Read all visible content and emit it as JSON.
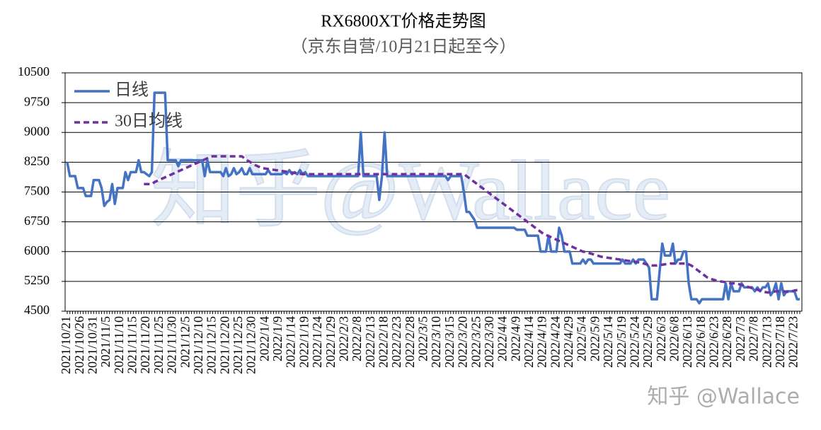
{
  "chart_data": {
    "type": "line",
    "title": "RX6800XT价格走势图",
    "subtitle": "（京东自营/10月21日起至今）",
    "watermark": "知乎@Wallace",
    "credit": "知乎 @Wallace",
    "ylim": [
      4500,
      10500
    ],
    "yticks": [
      4500,
      5250,
      6000,
      6750,
      7500,
      8250,
      9000,
      9750,
      10500
    ],
    "grid": true,
    "legend": "top-left",
    "categories": [
      "2021/10/21",
      null,
      null,
      null,
      null,
      "2021/10/26",
      null,
      null,
      null,
      null,
      "2021/10/31",
      null,
      null,
      null,
      null,
      "2021/11/5",
      null,
      null,
      null,
      null,
      "2021/11/10",
      null,
      null,
      null,
      null,
      "2021/11/15",
      null,
      null,
      null,
      null,
      "2021/11/20",
      null,
      null,
      null,
      null,
      "2021/11/25",
      null,
      null,
      null,
      null,
      "2021/11/30",
      null,
      null,
      null,
      null,
      "2021/12/5",
      null,
      null,
      null,
      null,
      "2021/12/10",
      null,
      null,
      null,
      null,
      "2021/12/15",
      null,
      null,
      null,
      null,
      "2021/12/20",
      null,
      null,
      null,
      null,
      "2021/12/25",
      null,
      null,
      null,
      null,
      "2021/12/30",
      null,
      null,
      null,
      null,
      "2022/1/4",
      null,
      null,
      null,
      null,
      "2022/1/9",
      null,
      null,
      null,
      null,
      "2022/1/14",
      null,
      null,
      null,
      null,
      "2022/1/19",
      null,
      null,
      null,
      null,
      "2022/1/24",
      null,
      null,
      null,
      null,
      "2022/1/29",
      null,
      null,
      null,
      null,
      "2022/2/3",
      null,
      null,
      null,
      null,
      "2022/2/8",
      null,
      null,
      null,
      null,
      "2022/2/13",
      null,
      null,
      null,
      null,
      "2022/2/18",
      null,
      null,
      null,
      null,
      "2022/2/23",
      null,
      null,
      null,
      null,
      "2022/2/28",
      null,
      null,
      null,
      null,
      "2022/3/5",
      null,
      null,
      null,
      null,
      "2022/3/10",
      null,
      null,
      null,
      null,
      "2022/3/15",
      null,
      null,
      null,
      null,
      "2022/3/20",
      null,
      null,
      null,
      null,
      "2022/3/25",
      null,
      null,
      null,
      null,
      "2022/3/30",
      null,
      null,
      null,
      null,
      "2022/4/4",
      null,
      null,
      null,
      null,
      "2022/4/9",
      null,
      null,
      null,
      null,
      "2022/4/14",
      null,
      null,
      null,
      null,
      "2022/4/19",
      null,
      null,
      null,
      null,
      "2022/4/24",
      null,
      null,
      null,
      null,
      "2022/4/29",
      null,
      null,
      null,
      null,
      "2022/5/4",
      null,
      null,
      null,
      null,
      "2022/5/9",
      null,
      null,
      null,
      null,
      "2022/5/14",
      null,
      null,
      null,
      null,
      "2022/5/19",
      null,
      null,
      null,
      null,
      "2022/5/24",
      null,
      null,
      null,
      null,
      "2022/5/29",
      null,
      null,
      null,
      null,
      "2022/6/3",
      null,
      null,
      null,
      null,
      "2022/6/8",
      null,
      null,
      null,
      null,
      "2022/6/13",
      null,
      null,
      null,
      null,
      "2022/6/18",
      null,
      null,
      null,
      null,
      "2022/6/23",
      null,
      null,
      null,
      null,
      "2022/6/28",
      null,
      null,
      null,
      null,
      "2022/7/3",
      null,
      null,
      null,
      null,
      "2022/7/8",
      null,
      null,
      null,
      null,
      "2022/7/13",
      null,
      null,
      null,
      null,
      "2022/7/18",
      null,
      null,
      null,
      null,
      "2022/7/23",
      null,
      null
    ],
    "series": [
      {
        "name": "日线",
        "color": "#4472c4",
        "dash": false,
        "values": [
          8250,
          7900,
          7900,
          7900,
          7600,
          7600,
          7600,
          7400,
          7400,
          7400,
          7800,
          7800,
          7800,
          7600,
          7150,
          7250,
          7300,
          7700,
          7200,
          7600,
          7600,
          7600,
          8000,
          7800,
          8000,
          8000,
          8000,
          8300,
          8000,
          8000,
          7950,
          7900,
          8000,
          10000,
          10000,
          10000,
          10000,
          10000,
          8300,
          8300,
          8300,
          8300,
          8150,
          8300,
          8300,
          8300,
          8300,
          8300,
          8300,
          8300,
          8300,
          8300,
          7900,
          8300,
          8000,
          8000,
          8000,
          8000,
          8000,
          7900,
          8100,
          7900,
          7950,
          8100,
          7950,
          8000,
          8100,
          7950,
          7950,
          8100,
          7950,
          7950,
          7950,
          7950,
          7950,
          7950,
          8050,
          7950,
          7950,
          7950,
          7950,
          7950,
          8000,
          7950,
          8050,
          7950,
          8000,
          7950,
          8050,
          7950,
          8000,
          7900,
          7900,
          7900,
          7900,
          7900,
          7900,
          7900,
          7900,
          7900,
          7900,
          7900,
          7900,
          7900,
          7900,
          7900,
          7900,
          7900,
          7900,
          7900,
          7900,
          9000,
          7900,
          7900,
          7900,
          7900,
          7900,
          7900,
          7300,
          7900,
          9000,
          7900,
          7900,
          7900,
          7900,
          7900,
          7900,
          7900,
          7900,
          7900,
          7900,
          7900,
          7900,
          7900,
          7900,
          7900,
          7900,
          7900,
          7900,
          7900,
          7900,
          7900,
          7900,
          7900,
          7800,
          7900,
          7900,
          7900,
          7900,
          7900,
          7500,
          7000,
          7000,
          6900,
          6800,
          6600,
          6600,
          6600,
          6600,
          6600,
          6600,
          6600,
          6600,
          6600,
          6600,
          6600,
          6600,
          6600,
          6600,
          6600,
          6550,
          6550,
          6550,
          6550,
          6400,
          6400,
          6400,
          6400,
          6400,
          6000,
          6000,
          6000,
          6400,
          6000,
          6000,
          6000,
          6600,
          6400,
          6000,
          6000,
          6000,
          5700,
          5700,
          5700,
          5700,
          5800,
          5700,
          5800,
          5800,
          5700,
          5700,
          5700,
          5700,
          5700,
          5700,
          5700,
          5700,
          5700,
          5700,
          5700,
          5800,
          5700,
          5700,
          5700,
          5800,
          5700,
          5800,
          5800,
          5800,
          5700,
          5600,
          4800,
          4800,
          4800,
          5500,
          6200,
          5900,
          5900,
          5900,
          6200,
          5700,
          5800,
          5800,
          6000,
          6000,
          5200,
          4800,
          4800,
          4800,
          4700,
          4800,
          4800,
          4800,
          4800,
          4800,
          4800,
          4800,
          4800,
          4800,
          5200,
          4800,
          5200,
          5000,
          5000,
          5000,
          5200,
          5100,
          5100,
          5100,
          5100,
          5000,
          5100,
          5000,
          5100,
          5100,
          5200,
          4900,
          5000,
          5200,
          4800,
          5200,
          4900,
          5000,
          5000,
          5000,
          5000,
          4800,
          4800
        ]
      },
      {
        "name": "30日均线",
        "color": "#7030a0",
        "dash": true,
        "values": [
          null,
          null,
          null,
          null,
          null,
          null,
          null,
          null,
          null,
          null,
          null,
          null,
          null,
          null,
          null,
          null,
          null,
          null,
          null,
          null,
          null,
          null,
          null,
          null,
          null,
          null,
          null,
          null,
          null,
          7700,
          7700,
          7700,
          7700,
          7750,
          7780,
          7810,
          7840,
          7870,
          7900,
          7930,
          7960,
          7990,
          8020,
          8050,
          8080,
          8110,
          8140,
          8170,
          8200,
          8230,
          8260,
          8290,
          8320,
          8350,
          8380,
          8400,
          8400,
          8400,
          8400,
          8400,
          8400,
          8400,
          8400,
          8400,
          8400,
          8400,
          8400,
          8350,
          8300,
          8260,
          8220,
          8180,
          8150,
          8120,
          8100,
          8090,
          8080,
          8070,
          8060,
          8050,
          8040,
          8030,
          8020,
          8010,
          8000,
          7990,
          7980,
          7970,
          7960,
          7950,
          7950,
          7950,
          7950,
          7950,
          7950,
          7950,
          7950,
          7950,
          7950,
          7950,
          7950,
          7950,
          7950,
          7950,
          7950,
          7950,
          7950,
          7950,
          7950,
          7950,
          7950,
          7950,
          7950,
          7950,
          7950,
          7950,
          7950,
          7950,
          7950,
          7950,
          7950,
          7950,
          7950,
          7950,
          7950,
          7950,
          7950,
          7950,
          7950,
          7950,
          7950,
          7950,
          7950,
          7950,
          7950,
          7950,
          7950,
          7950,
          7950,
          7950,
          7950,
          7950,
          7950,
          7950,
          7950,
          7950,
          7950,
          7950,
          7950,
          7950,
          7950,
          7900,
          7850,
          7800,
          7750,
          7700,
          7650,
          7600,
          7550,
          7500,
          7450,
          7400,
          7350,
          7300,
          7250,
          7200,
          7150,
          7100,
          7050,
          7000,
          6950,
          6900,
          6850,
          6800,
          6750,
          6700,
          6650,
          6600,
          6550,
          6500,
          6450,
          6420,
          6390,
          6360,
          6330,
          6300,
          6270,
          6240,
          6210,
          6180,
          6150,
          6120,
          6090,
          6060,
          6030,
          6000,
          5990,
          5970,
          5950,
          5930,
          5910,
          5890,
          5870,
          5860,
          5850,
          5840,
          5830,
          5820,
          5810,
          5800,
          5790,
          5780,
          5770,
          5760,
          5750,
          5740,
          5730,
          5720,
          5700,
          5680,
          5660,
          5650,
          5650,
          5650,
          5660,
          5670,
          5680,
          5690,
          5700,
          5700,
          5700,
          5700,
          5700,
          5700,
          5700,
          5680,
          5650,
          5600,
          5550,
          5500,
          5450,
          5400,
          5350,
          5320,
          5300,
          5280,
          5260,
          5250,
          5240,
          5230,
          5220,
          5200,
          5200,
          5200,
          5180,
          5160,
          5140,
          5120,
          5100,
          5080,
          5060,
          5040,
          5020,
          5000,
          4980,
          4970,
          4980,
          4990,
          5000,
          5000,
          5000,
          5000,
          4990,
          4980,
          5000,
          5020,
          5030,
          5030
        ]
      }
    ]
  }
}
